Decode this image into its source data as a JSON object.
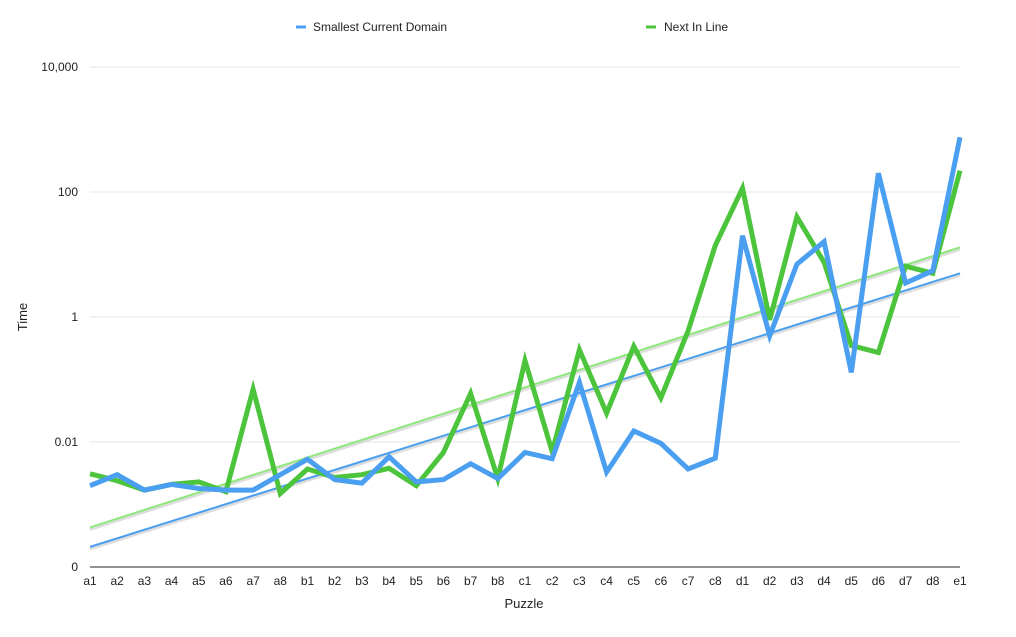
{
  "chart_data": {
    "type": "line",
    "title": "",
    "xlabel": "Puzzle",
    "ylabel": "Time",
    "y_scale": "log",
    "ylim": [
      0.0001,
      10000
    ],
    "y_ticks": [
      {
        "value": 0.0001,
        "label": "0"
      },
      {
        "value": 0.01,
        "label": "0.01"
      },
      {
        "value": 1,
        "label": "1"
      },
      {
        "value": 100,
        "label": "100"
      },
      {
        "value": 10000,
        "label": "10,000"
      }
    ],
    "grid": true,
    "legend_position": "top",
    "categories": [
      "a1",
      "a2",
      "a3",
      "a4",
      "a5",
      "a6",
      "a7",
      "a8",
      "b1",
      "b2",
      "b3",
      "b4",
      "b5",
      "b6",
      "b7",
      "b8",
      "c1",
      "c2",
      "c3",
      "c4",
      "c5",
      "c6",
      "c7",
      "c8",
      "d1",
      "d2",
      "d3",
      "d4",
      "d5",
      "d6",
      "d7",
      "d8",
      "e1"
    ],
    "series": [
      {
        "name": "Smallest Current Domain",
        "color": "#4a9ff0",
        "values": [
          0.002,
          0.003,
          0.0017,
          0.0021,
          0.0018,
          0.0017,
          0.0017,
          0.003,
          0.0053,
          0.0025,
          0.0022,
          0.0058,
          0.0023,
          0.0025,
          0.0045,
          0.0026,
          0.0068,
          0.0054,
          0.09,
          0.0033,
          0.015,
          0.0095,
          0.0037,
          0.0055,
          20,
          0.5,
          7,
          16,
          0.13,
          200,
          3.5,
          5.5,
          750
        ]
      },
      {
        "name": "Next In Line",
        "color": "#4cc43c",
        "values": [
          0.0031,
          0.0024,
          0.0017,
          0.0021,
          0.0023,
          0.0016,
          0.07,
          0.0015,
          0.0037,
          0.0027,
          0.003,
          0.0038,
          0.002,
          0.0068,
          0.06,
          0.0026,
          0.2,
          0.007,
          0.3,
          0.029,
          0.34,
          0.051,
          0.6,
          14,
          115,
          0.9,
          40,
          7.5,
          0.35,
          0.27,
          6.5,
          5,
          220
        ]
      }
    ],
    "trendlines": [
      {
        "series": "Smallest Current Domain",
        "color": "#4a9ff0",
        "start": 0.00021,
        "end": 5
      },
      {
        "series": "Next In Line",
        "color": "#8fe87c",
        "start": 0.00043,
        "end": 13
      }
    ]
  }
}
